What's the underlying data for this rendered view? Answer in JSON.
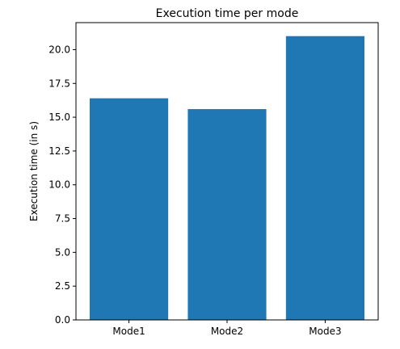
{
  "chart_data": {
    "type": "bar",
    "title": "Execution time per mode",
    "xlabel": "",
    "ylabel": "Execution time (in s)",
    "categories": [
      "Mode1",
      "Mode2",
      "Mode3"
    ],
    "values": [
      16.4,
      15.6,
      21.0
    ],
    "ylim": [
      0,
      22
    ],
    "yticks": [
      "0.0",
      "2.5",
      "5.0",
      "7.5",
      "10.0",
      "12.5",
      "15.0",
      "17.5",
      "20.0"
    ],
    "grid": false,
    "bar_color": "#1f77b4"
  }
}
